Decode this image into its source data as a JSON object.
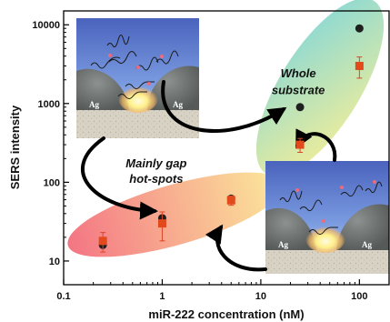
{
  "chart_data": {
    "type": "scatter",
    "xlabel": "miR-222 concentration (nM)",
    "ylabel": "SERS intensity",
    "xscale": "log",
    "yscale": "log",
    "xlim": [
      0.1,
      200
    ],
    "ylim": [
      5,
      15000
    ],
    "x_ticks": [
      0.1,
      1,
      10,
      100
    ],
    "x_tick_labels": [
      "0.1",
      "1",
      "10",
      "100"
    ],
    "y_ticks": [
      10,
      100,
      1000,
      10000
    ],
    "y_tick_labels": [
      "10",
      "100",
      "1000",
      "10000"
    ],
    "grid": false,
    "series": [
      {
        "marker": "circle",
        "color": "#1f1f1f",
        "points": [
          {
            "x": 0.25,
            "y": 16
          },
          {
            "x": 1,
            "y": 35
          },
          {
            "x": 5,
            "y": 62
          },
          {
            "x": 25,
            "y": 900
          },
          {
            "x": 100,
            "y": 9000
          }
        ]
      },
      {
        "marker": "square",
        "color": "#e24a1c",
        "points": [
          {
            "x": 0.25,
            "y": 18,
            "err": 5
          },
          {
            "x": 1,
            "y": 30,
            "err": 12
          },
          {
            "x": 5,
            "y": 59,
            "err": 8
          },
          {
            "x": 25,
            "y": 300,
            "err": 60
          },
          {
            "x": 100,
            "y": 3000,
            "err": 900
          }
        ]
      }
    ],
    "annotations": [
      {
        "text": "Mainly gap",
        "x": 0.87,
        "y": 154
      },
      {
        "text": "hot-spots",
        "x": 0.87,
        "y": 98
      },
      {
        "text": "Whole",
        "x": 24,
        "y": 2150
      },
      {
        "text": "substrate",
        "x": 24,
        "y": 1320
      }
    ],
    "inset_labels": [
      "Ag",
      "Ag"
    ]
  },
  "colors": {
    "low_ellipse_start": "#f25d6e",
    "low_ellipse_end": "#fbe58a",
    "high_ellipse_start": "#f6ec82",
    "high_ellipse_end": "#6dd0d3",
    "inset_sky": "#4d6bc2",
    "nanoparticle": "#6b6f6e",
    "hotspot": "#fff4a0"
  }
}
